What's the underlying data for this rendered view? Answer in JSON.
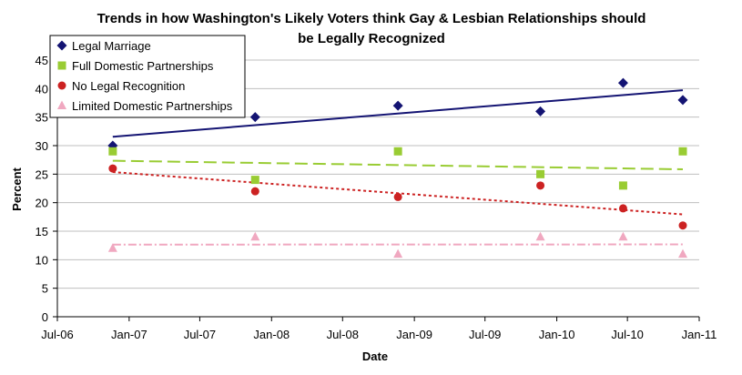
{
  "chart_data": {
    "type": "scatter",
    "title": "Trends in how Washington's Likely Voters think Gay & Lesbian Relationships should be Legally Recognized",
    "title_lines": [
      "Trends in how Washington's Likely Voters think Gay & Lesbian Relationships should",
      "be Legally Recognized"
    ],
    "xlabel": "Date",
    "ylabel": "Percent",
    "x_ticks": [
      "Jul-06",
      "Jan-07",
      "Jul-07",
      "Jan-08",
      "Jul-08",
      "Jan-09",
      "Jul-09",
      "Jan-10",
      "Jul-10",
      "Jan-11"
    ],
    "x_tick_dates": [
      "2006-07-01",
      "2007-01-01",
      "2007-07-01",
      "2008-01-01",
      "2008-07-01",
      "2009-01-01",
      "2009-07-01",
      "2010-01-01",
      "2010-07-01",
      "2011-01-01"
    ],
    "xlim": [
      "2006-07-01",
      "2011-01-01"
    ],
    "y_ticks": [
      "0",
      "5",
      "10",
      "15",
      "20",
      "25",
      "30",
      "35",
      "40",
      "45"
    ],
    "ylim": [
      0,
      45
    ],
    "grid": "horizontal",
    "legend_position": "top-left",
    "series": [
      {
        "name": "Legal Marriage",
        "marker": "diamond",
        "color": "#141473",
        "trendline": "solid",
        "points": [
          {
            "x": "2006-11-20",
            "y": 30
          },
          {
            "x": "2007-11-20",
            "y": 35
          },
          {
            "x": "2008-11-20",
            "y": 37
          },
          {
            "x": "2009-11-20",
            "y": 36
          },
          {
            "x": "2010-06-20",
            "y": 41
          },
          {
            "x": "2010-11-20",
            "y": 38
          }
        ]
      },
      {
        "name": "Full Domestic Partnerships",
        "marker": "square",
        "color": "#99cc33",
        "trendline": "dashed",
        "points": [
          {
            "x": "2006-11-20",
            "y": 29
          },
          {
            "x": "2007-11-20",
            "y": 24
          },
          {
            "x": "2008-11-20",
            "y": 29
          },
          {
            "x": "2009-11-20",
            "y": 25
          },
          {
            "x": "2010-06-20",
            "y": 23
          },
          {
            "x": "2010-11-20",
            "y": 29
          }
        ]
      },
      {
        "name": "No Legal Recognition",
        "marker": "circle",
        "color": "#cc2222",
        "trendline": "dotted",
        "points": [
          {
            "x": "2006-11-20",
            "y": 26
          },
          {
            "x": "2007-11-20",
            "y": 22
          },
          {
            "x": "2008-11-20",
            "y": 21
          },
          {
            "x": "2009-11-20",
            "y": 23
          },
          {
            "x": "2010-06-20",
            "y": 19
          },
          {
            "x": "2010-11-20",
            "y": 16
          }
        ]
      },
      {
        "name": "Limited Domestic Partnerships",
        "marker": "triangle",
        "color": "#f0a8c0",
        "trendline": "dashdot",
        "points": [
          {
            "x": "2006-11-20",
            "y": 12
          },
          {
            "x": "2007-11-20",
            "y": 14
          },
          {
            "x": "2008-11-20",
            "y": 11
          },
          {
            "x": "2009-11-20",
            "y": 14
          },
          {
            "x": "2010-06-20",
            "y": 14
          },
          {
            "x": "2010-11-20",
            "y": 11
          }
        ]
      }
    ]
  }
}
